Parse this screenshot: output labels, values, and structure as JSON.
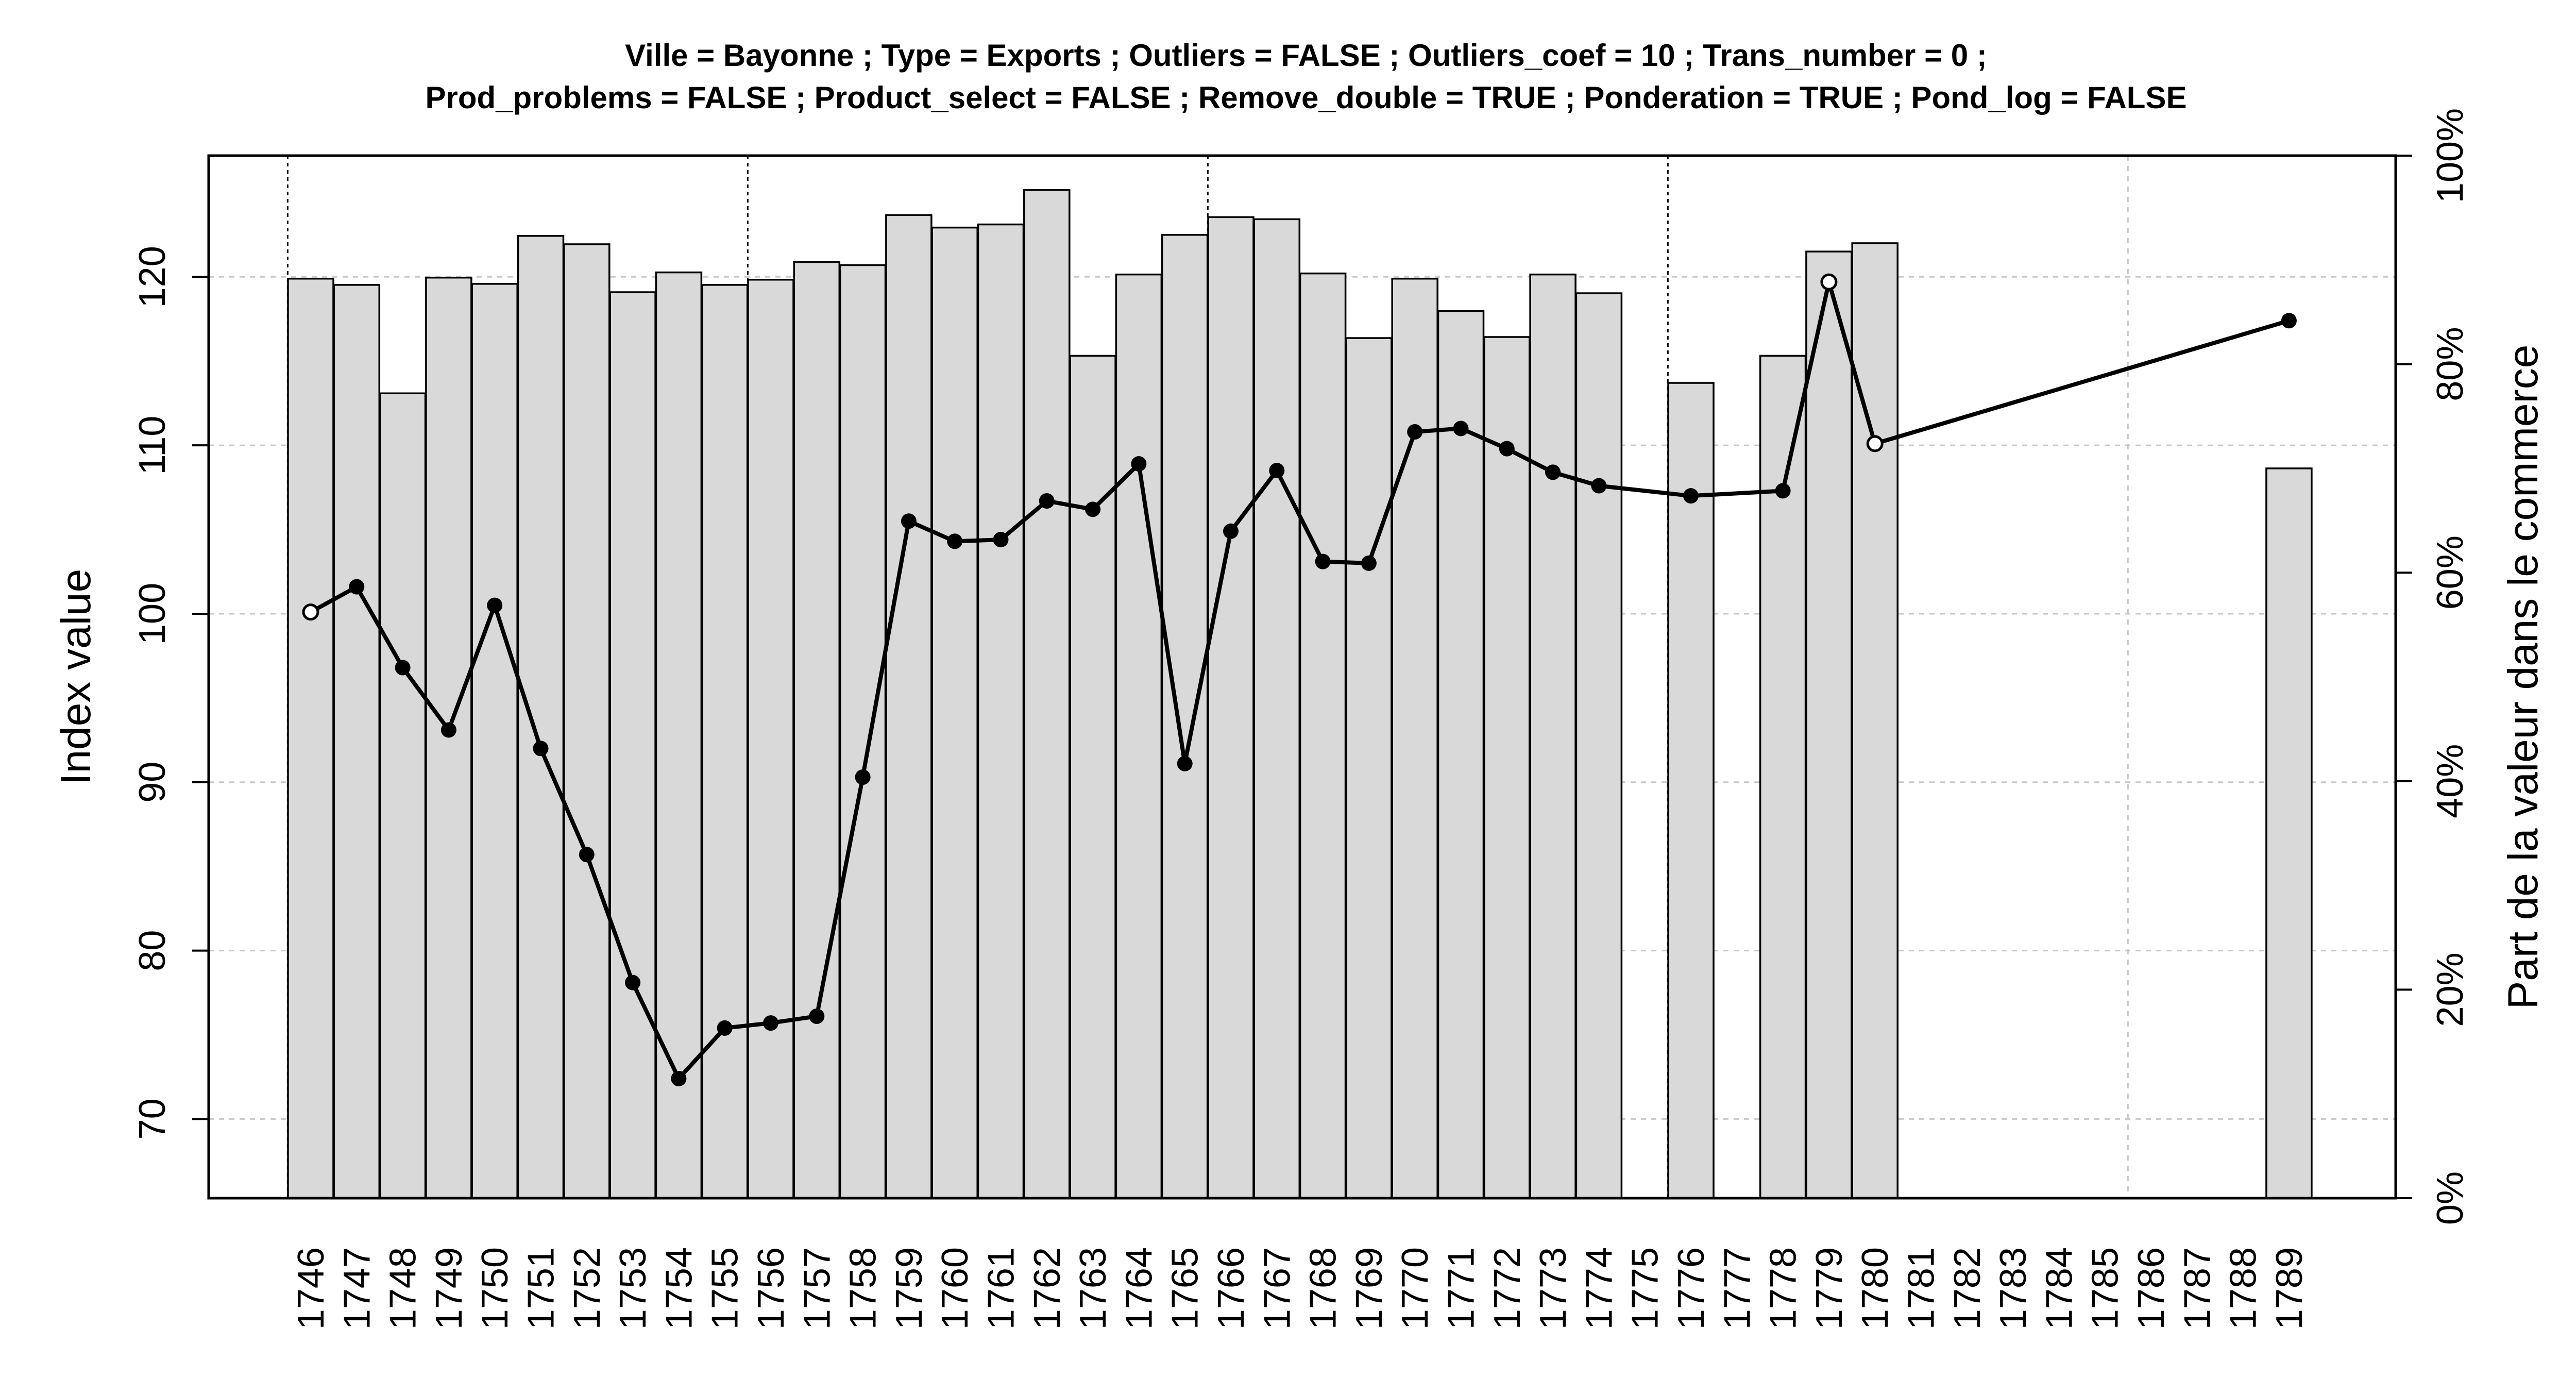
{
  "chart_data": {
    "type": "bar",
    "title_lines": [
      "Ville = Bayonne ; Type = Exports ; Outliers = FALSE ; Outliers_coef = 10 ; Trans_number = 0 ;",
      "Prod_problems = FALSE ; Product_select = FALSE ; Remove_double = TRUE ; Ponderation = TRUE ; Pond_log = FALSE"
    ],
    "ylabel": "Index value",
    "ylabel_right": "Part de la valeur dans le commerce",
    "categories": [
      "1746",
      "1747",
      "1748",
      "1749",
      "1750",
      "1751",
      "1752",
      "1753",
      "1754",
      "1755",
      "1756",
      "1757",
      "1758",
      "1759",
      "1760",
      "1761",
      "1762",
      "1763",
      "1764",
      "1765",
      "1766",
      "1767",
      "1768",
      "1769",
      "1770",
      "1771",
      "1772",
      "1773",
      "1774",
      "1775",
      "1776",
      "1777",
      "1778",
      "1779",
      "1780",
      "1781",
      "1782",
      "1783",
      "1784",
      "1785",
      "1786",
      "1787",
      "1788",
      "1789"
    ],
    "y_left": {
      "ylim": [
        65.3,
        127.2
      ],
      "ticks": [
        70,
        80,
        90,
        100,
        110,
        120
      ]
    },
    "y_right": {
      "ylim": [
        0,
        100
      ],
      "ticks": [
        0,
        20,
        40,
        60,
        80,
        100
      ],
      "tick_labels": [
        "0%",
        "20%",
        "40%",
        "60%",
        "80%",
        "100%"
      ]
    },
    "series": [
      {
        "type": "bar",
        "axis": "right",
        "unit": "percent",
        "values": [
          88.2,
          87.6,
          77.2,
          88.3,
          87.7,
          92.3,
          91.5,
          86.9,
          88.8,
          87.6,
          88.1,
          89.8,
          89.5,
          94.3,
          93.1,
          93.4,
          96.7,
          80.8,
          88.6,
          92.4,
          94.1,
          93.9,
          88.7,
          82.5,
          88.2,
          85.1,
          82.6,
          88.6,
          86.8,
          null,
          78.2,
          null,
          80.8,
          90.8,
          91.6,
          null,
          null,
          null,
          null,
          null,
          null,
          null,
          null,
          70.0
        ]
      },
      {
        "type": "line",
        "axis": "left",
        "values": [
          100.1,
          101.6,
          96.8,
          93.1,
          100.5,
          92.0,
          85.7,
          78.1,
          72.4,
          75.4,
          75.7,
          76.1,
          90.3,
          105.5,
          104.3,
          104.4,
          106.7,
          106.2,
          108.9,
          91.1,
          104.9,
          108.5,
          103.1,
          103.0,
          110.8,
          111.0,
          109.8,
          108.4,
          107.6,
          null,
          107.0,
          null,
          107.3,
          119.7,
          110.1,
          null,
          null,
          null,
          null,
          null,
          null,
          null,
          null,
          117.4
        ],
        "open_points": [
          "1746",
          "1779",
          "1780"
        ]
      }
    ],
    "vertical_dashed_at": [
      "1746",
      "1756",
      "1766",
      "1776"
    ],
    "grid": true,
    "colors": {
      "bar_fill": "#d9d9d9",
      "bar_stroke": "#000000",
      "line": "#000000",
      "grid": "#c8c8c8"
    }
  }
}
